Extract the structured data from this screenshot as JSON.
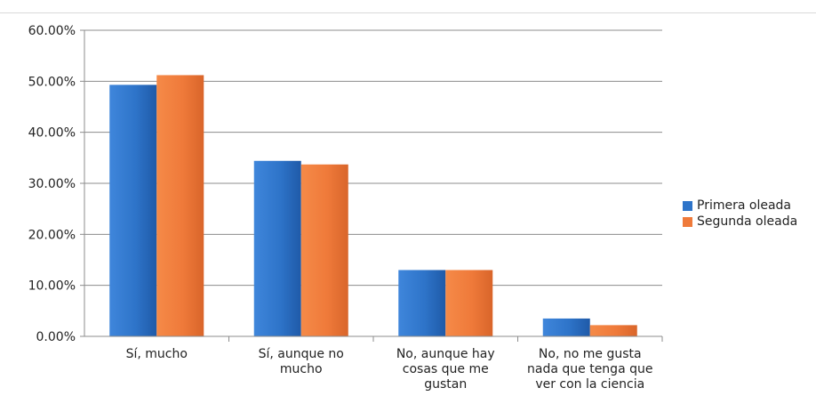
{
  "chart_data": {
    "type": "bar",
    "categories": [
      [
        "Sí, mucho"
      ],
      [
        "Sí, aunque no",
        "mucho"
      ],
      [
        "No, aunque hay",
        "cosas que me",
        "gustan"
      ],
      [
        "No, no me gusta",
        "nada que tenga que",
        "ver con la ciencia"
      ]
    ],
    "series": [
      {
        "name": "Primera oleada",
        "values": [
          49.3,
          34.4,
          13.0,
          3.5
        ],
        "color": "#2e74c9"
      },
      {
        "name": "Segunda oleada",
        "values": [
          51.2,
          33.7,
          13.0,
          2.2
        ],
        "color": "#ef7a3a"
      }
    ],
    "ylim": [
      0,
      60
    ],
    "yticks": [
      "0.00%",
      "10.00%",
      "20.00%",
      "30.00%",
      "40.00%",
      "50.00%",
      "60.00%"
    ],
    "grid": true,
    "legend_position": "right"
  }
}
